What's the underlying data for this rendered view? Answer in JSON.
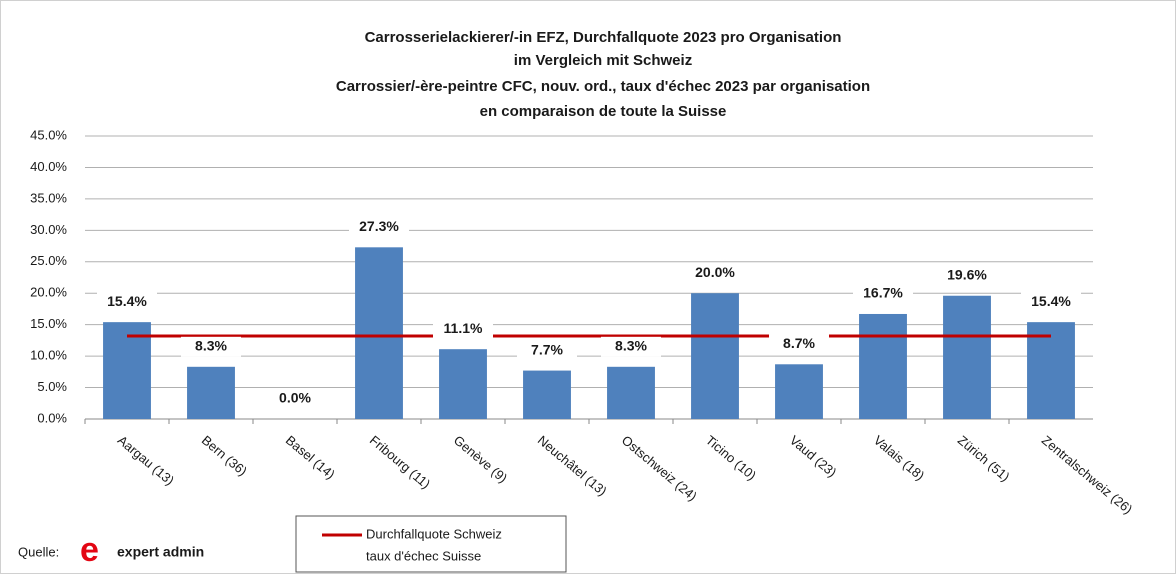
{
  "chart_data": {
    "type": "bar",
    "title": [
      "Carrosserielackierer/-in EFZ, Durchfallquote 2023 pro Organisation",
      "im Vergleich mit Schweiz",
      "Carrossier/-ère-peintre CFC, nouv. ord., taux d'échec 2023 par organisation",
      "en comparaison  de toute la Suisse"
    ],
    "categories": [
      "Aargau (13)",
      "Bern (36)",
      "Basel (14)",
      "Fribourg (11)",
      "Genève (9)",
      "Neuchâtel (13)",
      "Ostschweiz (24)",
      "Ticino (10)",
      "Vaud (23)",
      "Valais (18)",
      "Zürich (51)",
      "Zentralschweiz (26)"
    ],
    "values": [
      15.4,
      8.3,
      0.0,
      27.3,
      11.1,
      7.7,
      8.3,
      20.0,
      8.7,
      16.7,
      19.6,
      15.4
    ],
    "value_labels": [
      "15.4%",
      "8.3%",
      "0.0%",
      "27.3%",
      "11.1%",
      "7.7%",
      "8.3%",
      "20.0%",
      "8.7%",
      "16.7%",
      "19.6%",
      "15.4%"
    ],
    "color": "#4f81bd",
    "reference": {
      "name": [
        "Durchfallquote Schweiz",
        "taux d'échec Suisse"
      ],
      "value": 13.2,
      "color": "#c00000"
    },
    "ylim": [
      0,
      45
    ],
    "yticks": [
      {
        "value": 0,
        "label": "0.0%"
      },
      {
        "value": 5,
        "label": "5.0%"
      },
      {
        "value": 10,
        "label": "10.0%"
      },
      {
        "value": 15,
        "label": "15.0%"
      },
      {
        "value": 20,
        "label": "20.0%"
      },
      {
        "value": 25,
        "label": "25.0%"
      },
      {
        "value": 30,
        "label": "30.0%"
      },
      {
        "value": 35,
        "label": "35.0%"
      },
      {
        "value": 40,
        "label": "40.0%"
      },
      {
        "value": 45,
        "label": "45.0%"
      }
    ],
    "grid": true,
    "source_label": "Quelle:",
    "logo_mark": "e",
    "logo_text": "expert admin"
  }
}
